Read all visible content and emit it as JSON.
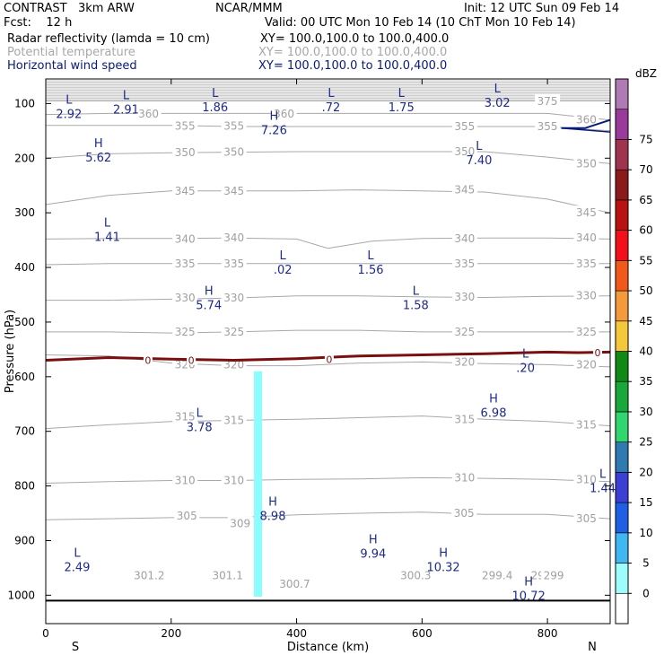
{
  "header": {
    "title_left": "CONTRAST   3km ARW",
    "center": "NCAR/MMM",
    "init": "Init: 12 UTC Sun 09 Feb 14",
    "fcst": "Fcst:    12 h",
    "valid": "Valid: 00 UTC Mon 10 Feb 14 (10 ChT Mon 10 Feb 14)",
    "fields": [
      {
        "label": "Radar reflectivity (lamda = 10 cm)",
        "xy": "XY= 100.0,100.0 to 100.0,400.0",
        "color": "#000000"
      },
      {
        "label": "Potential temperature",
        "xy": "XY= 100.0,100.0 to 100.0,400.0",
        "color": "#a8a8a8"
      },
      {
        "label": "Horizontal wind speed",
        "xy": "XY= 100.0,100.0 to 100.0,400.0",
        "color": "#0a1a78"
      }
    ]
  },
  "chart_data": {
    "type": "contour",
    "xlabel": "Distance (km)",
    "ylabel": "Pressure (hPa)",
    "xlim": [
      0,
      900
    ],
    "ylim": [
      1050,
      55
    ],
    "x_ticks": [
      0,
      200,
      400,
      600,
      800
    ],
    "y_ticks": [
      100,
      200,
      300,
      400,
      500,
      600,
      700,
      800,
      900,
      1000
    ],
    "x_end_labels": {
      "left": "S",
      "right": "N"
    },
    "colorbar": {
      "unit": "dBZ",
      "levels": [
        0,
        5,
        10,
        15,
        20,
        25,
        30,
        35,
        40,
        45,
        50,
        55,
        60,
        65,
        70,
        75
      ],
      "colors": [
        "#ffffff",
        "#9dfcfc",
        "#3fb7f2",
        "#1f5fe6",
        "#3b3fd6",
        "#2f7ab0",
        "#31d66e",
        "#19a83a",
        "#108a14",
        "#f5c73a",
        "#f59a3b",
        "#f3581b",
        "#f3101b",
        "#ba1212",
        "#8b1a1a",
        "#a0344f",
        "#9a3a9a",
        "#b07ab4"
      ]
    },
    "theta_contours": [
      {
        "value": 299,
        "labels": [
          [
            790,
            964
          ],
          [
            810,
            964
          ]
        ]
      },
      {
        "value": 299.4,
        "labels": [
          [
            720,
            964
          ]
        ]
      },
      {
        "value": 300.3,
        "labels": [
          [
            590,
            964
          ]
        ]
      },
      {
        "value": 300.7,
        "labels": [
          [
            397,
            980
          ]
        ]
      },
      {
        "value": 301.1,
        "labels": [
          [
            290,
            964
          ]
        ]
      },
      {
        "value": 301.2,
        "labels": [
          [
            165,
            964
          ]
        ]
      },
      {
        "value": 305,
        "points": [
          [
            0,
            862
          ],
          [
            100,
            860
          ],
          [
            200,
            858
          ],
          [
            300,
            858
          ],
          [
            400,
            853
          ],
          [
            500,
            850
          ],
          [
            600,
            848
          ],
          [
            700,
            852
          ],
          [
            800,
            852
          ],
          [
            900,
            860
          ]
        ],
        "labels": [
          [
            225,
            855
          ],
          [
            667,
            850
          ],
          [
            862,
            860
          ]
        ]
      },
      {
        "value": 309,
        "labels": [
          [
            310,
            869
          ]
        ]
      },
      {
        "value": 310,
        "points": [
          [
            0,
            795
          ],
          [
            100,
            792
          ],
          [
            200,
            790
          ],
          [
            300,
            790
          ],
          [
            400,
            788
          ],
          [
            500,
            787
          ],
          [
            600,
            785
          ],
          [
            700,
            786
          ],
          [
            800,
            788
          ],
          [
            900,
            792
          ]
        ],
        "labels": [
          [
            222,
            790
          ],
          [
            300,
            790
          ],
          [
            668,
            785
          ],
          [
            862,
            788
          ]
        ]
      },
      {
        "value": 315,
        "points": [
          [
            0,
            695
          ],
          [
            100,
            688
          ],
          [
            200,
            682
          ],
          [
            300,
            680
          ],
          [
            400,
            678
          ],
          [
            500,
            675
          ],
          [
            600,
            672
          ],
          [
            700,
            678
          ],
          [
            800,
            682
          ],
          [
            900,
            690
          ]
        ],
        "labels": [
          [
            222,
            673
          ],
          [
            300,
            680
          ],
          [
            668,
            678
          ],
          [
            862,
            688
          ]
        ]
      },
      {
        "value": 320,
        "points": [
          [
            0,
            560
          ],
          [
            100,
            562
          ],
          [
            200,
            575
          ],
          [
            300,
            580
          ],
          [
            400,
            580
          ],
          [
            500,
            575
          ],
          [
            600,
            573
          ],
          [
            700,
            576
          ],
          [
            800,
            578
          ],
          [
            900,
            582
          ]
        ],
        "labels": [
          [
            222,
            578
          ],
          [
            300,
            578
          ],
          [
            668,
            573
          ],
          [
            862,
            578
          ]
        ]
      },
      {
        "value": 325,
        "points": [
          [
            0,
            518
          ],
          [
            100,
            518
          ],
          [
            200,
            520
          ],
          [
            300,
            518
          ],
          [
            400,
            515
          ],
          [
            500,
            515
          ],
          [
            600,
            518
          ],
          [
            700,
            518
          ],
          [
            800,
            518
          ],
          [
            900,
            518
          ]
        ],
        "labels": [
          [
            222,
            518
          ],
          [
            300,
            518
          ],
          [
            668,
            518
          ],
          [
            862,
            518
          ]
        ]
      },
      {
        "value": 330,
        "points": [
          [
            0,
            460
          ],
          [
            100,
            460
          ],
          [
            200,
            458
          ],
          [
            300,
            456
          ],
          [
            400,
            452
          ],
          [
            500,
            452
          ],
          [
            600,
            454
          ],
          [
            700,
            455
          ],
          [
            800,
            453
          ],
          [
            900,
            452
          ]
        ],
        "labels": [
          [
            222,
            456
          ],
          [
            300,
            456
          ],
          [
            668,
            454
          ],
          [
            862,
            452
          ]
        ]
      },
      {
        "value": 335,
        "points": [
          [
            0,
            395
          ],
          [
            100,
            393
          ],
          [
            200,
            393
          ],
          [
            300,
            393
          ],
          [
            400,
            393
          ],
          [
            500,
            393
          ],
          [
            600,
            393
          ],
          [
            700,
            393
          ],
          [
            800,
            393
          ],
          [
            900,
            393
          ]
        ],
        "labels": [
          [
            222,
            393
          ],
          [
            300,
            393
          ],
          [
            668,
            393
          ],
          [
            862,
            393
          ]
        ]
      },
      {
        "value": 340,
        "points": [
          [
            0,
            348
          ],
          [
            100,
            347
          ],
          [
            200,
            347
          ],
          [
            300,
            346
          ],
          [
            400,
            348
          ],
          [
            450,
            365
          ],
          [
            520,
            352
          ],
          [
            600,
            347
          ],
          [
            700,
            346
          ],
          [
            800,
            346
          ],
          [
            900,
            348
          ]
        ],
        "labels": [
          [
            222,
            348
          ],
          [
            300,
            346
          ],
          [
            668,
            347
          ],
          [
            862,
            346
          ]
        ]
      },
      {
        "value": 345,
        "points": [
          [
            0,
            285
          ],
          [
            100,
            268
          ],
          [
            200,
            260
          ],
          [
            300,
            260
          ],
          [
            400,
            260
          ],
          [
            500,
            258
          ],
          [
            600,
            260
          ],
          [
            700,
            262
          ],
          [
            800,
            275
          ],
          [
            900,
            300
          ]
        ],
        "labels": [
          [
            222,
            260
          ],
          [
            300,
            260
          ],
          [
            668,
            258
          ],
          [
            862,
            300
          ]
        ]
      },
      {
        "value": 350,
        "points": [
          [
            0,
            200
          ],
          [
            100,
            192
          ],
          [
            200,
            190
          ],
          [
            300,
            189
          ],
          [
            400,
            188
          ],
          [
            500,
            188
          ],
          [
            600,
            188
          ],
          [
            700,
            188
          ],
          [
            800,
            198
          ],
          [
            900,
            210
          ]
        ],
        "labels": [
          [
            222,
            190
          ],
          [
            300,
            189
          ],
          [
            668,
            188
          ],
          [
            862,
            210
          ]
        ]
      },
      {
        "value": 355,
        "points": [
          [
            0,
            140
          ],
          [
            100,
            140
          ],
          [
            200,
            140
          ],
          [
            300,
            142
          ],
          [
            400,
            142
          ],
          [
            500,
            142
          ],
          [
            600,
            142
          ],
          [
            700,
            142
          ],
          [
            800,
            142
          ],
          [
            900,
            150
          ]
        ],
        "labels": [
          [
            222,
            141
          ],
          [
            300,
            141
          ],
          [
            668,
            142
          ],
          [
            800,
            142
          ]
        ]
      },
      {
        "value": 360,
        "points": [
          [
            0,
            120
          ],
          [
            100,
            118
          ],
          [
            200,
            118
          ],
          [
            300,
            118
          ],
          [
            400,
            118
          ],
          [
            500,
            118
          ],
          [
            600,
            118
          ],
          [
            700,
            118
          ],
          [
            800,
            118
          ],
          [
            900,
            130
          ]
        ],
        "labels": [
          [
            164,
            119
          ],
          [
            380,
            119
          ],
          [
            862,
            130
          ]
        ]
      },
      {
        "value": 375,
        "points": [
          [
            0,
            95
          ],
          [
            200,
            95
          ],
          [
            400,
            95
          ],
          [
            600,
            95
          ],
          [
            800,
            95
          ],
          [
            900,
            95
          ]
        ],
        "labels": [
          [
            800,
            96
          ]
        ]
      }
    ],
    "zero_isotherm": {
      "value": 0,
      "points": [
        [
          0,
          570
        ],
        [
          100,
          565
        ],
        [
          200,
          568
        ],
        [
          300,
          570
        ],
        [
          400,
          567
        ],
        [
          500,
          562
        ],
        [
          600,
          560
        ],
        [
          700,
          558
        ],
        [
          800,
          555
        ],
        [
          850,
          556
        ],
        [
          900,
          555
        ]
      ],
      "labels": [
        [
          163,
          570
        ],
        [
          232,
          570
        ],
        [
          452,
          568
        ],
        [
          880,
          556
        ]
      ]
    },
    "wind_extrema": [
      {
        "type": "L",
        "value": ".20",
        "x": 765,
        "p": 565
      },
      {
        "type": "L",
        "value": "2.92",
        "x": 37,
        "p": 100
      },
      {
        "type": "L",
        "value": "2.91",
        "x": 128,
        "p": 92
      },
      {
        "type": "L",
        "value": "1.86",
        "x": 270,
        "p": 88
      },
      {
        "type": "L",
        "value": ".72",
        "x": 455,
        "p": 88
      },
      {
        "type": "L",
        "value": "1.75",
        "x": 567,
        "p": 88
      },
      {
        "type": "L",
        "value": "3.02",
        "x": 720,
        "p": 80
      },
      {
        "type": "H",
        "value": "7.26",
        "x": 364,
        "p": 130
      },
      {
        "type": "H",
        "value": "5.62",
        "x": 84,
        "p": 180
      },
      {
        "type": "L",
        "value": "7.40",
        "x": 691,
        "p": 185
      },
      {
        "type": "L",
        "value": "1.41",
        "x": 98,
        "p": 325
      },
      {
        "type": "L",
        "value": ".02",
        "x": 378,
        "p": 385
      },
      {
        "type": "L",
        "value": "1.56",
        "x": 518,
        "p": 385
      },
      {
        "type": "H",
        "value": "5.74",
        "x": 260,
        "p": 450
      },
      {
        "type": "L",
        "value": "1.58",
        "x": 590,
        "p": 450
      },
      {
        "type": "H",
        "value": "6.98",
        "x": 714,
        "p": 647
      },
      {
        "type": "L",
        "value": "3.78",
        "x": 245,
        "p": 673
      },
      {
        "type": "L",
        "value": "1.44",
        "x": 888,
        "p": 785
      },
      {
        "type": "H",
        "value": "8.98",
        "x": 362,
        "p": 836
      },
      {
        "type": "L",
        "value": "2.49",
        "x": 50,
        "p": 930
      },
      {
        "type": "H",
        "value": "9.94",
        "x": 522,
        "p": 905
      },
      {
        "type": "H",
        "value": "10.32",
        "x": 634,
        "p": 930
      },
      {
        "type": "H",
        "value": "10.72",
        "x": 770,
        "p": 982
      }
    ],
    "reflectivity_column": {
      "x_range": [
        332,
        345
      ],
      "p_range": [
        590,
        1003
      ],
      "dbz": 5
    },
    "wind_jet_contour": {
      "points": [
        [
          822,
          145
        ],
        [
          860,
          145
        ],
        [
          900,
          130
        ]
      ]
    },
    "surface": {
      "p": 1010
    }
  }
}
